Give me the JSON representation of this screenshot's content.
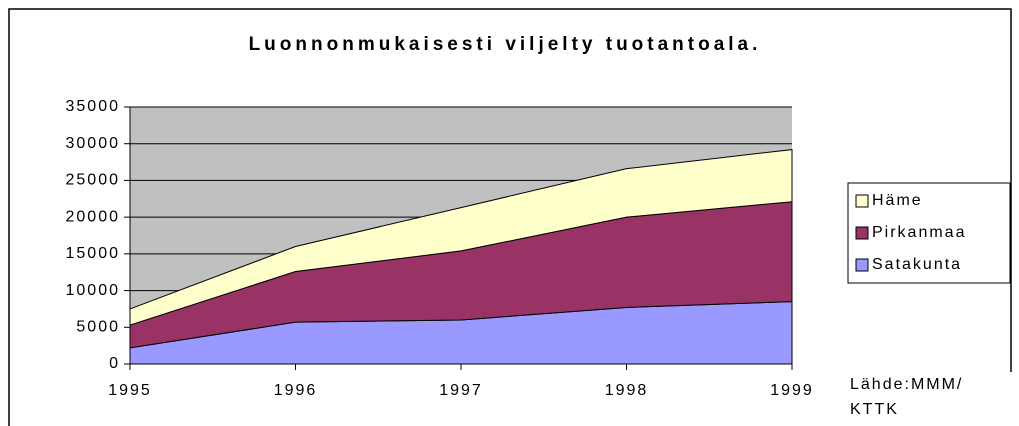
{
  "chart_data": {
    "type": "area",
    "stacked": true,
    "title": "Luonnonmukaisesti viljelty tuotantoala.",
    "categories": [
      "1995",
      "1996",
      "1997",
      "1998",
      "1999"
    ],
    "series": [
      {
        "name": "Satakunta",
        "color": "#9999ff",
        "values": [
          2200,
          5700,
          6000,
          7700,
          8500
        ]
      },
      {
        "name": "Pirkanmaa",
        "color": "#993366",
        "values": [
          3100,
          6900,
          9400,
          12300,
          13600
        ]
      },
      {
        "name": "Häme",
        "color": "#ffffcc",
        "values": [
          2200,
          3400,
          5900,
          6600,
          7100
        ]
      }
    ],
    "ylim": [
      0,
      35000
    ],
    "yticks": [
      0,
      5000,
      10000,
      15000,
      20000,
      25000,
      30000,
      35000
    ],
    "grid": true,
    "legend": "right",
    "source": [
      "Lähde:MMM/",
      "KTTK"
    ]
  }
}
